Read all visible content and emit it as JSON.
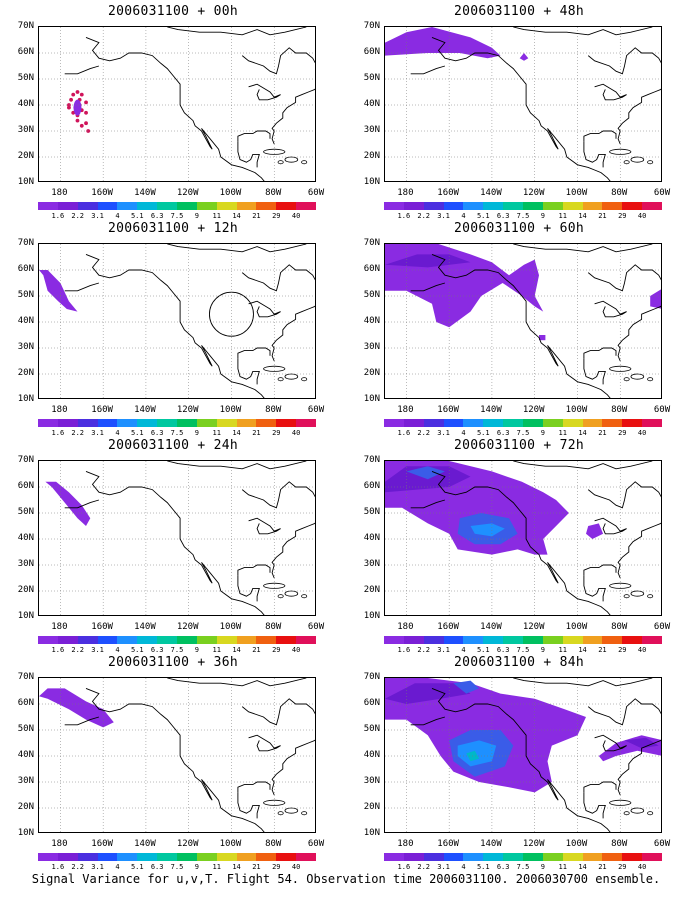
{
  "caption": "Signal Variance for u,v,T. Flight 54. Observation time 2006031100. 2006030700 ensemble.",
  "lat_ticks": [
    "70N",
    "60N",
    "50N",
    "40N",
    "30N",
    "20N",
    "10N"
  ],
  "lon_ticks": [
    "180",
    "160W",
    "140W",
    "120W",
    "100W",
    "80W",
    "60W"
  ],
  "colorbar": {
    "labels": [
      "1.6",
      "2.2",
      "3.1",
      "4",
      "5.1",
      "6.3",
      "7.5",
      "9",
      "11",
      "14",
      "21",
      "29",
      "40"
    ],
    "colors": [
      "#8a2be2",
      "#7a1fd6",
      "#4b2fe0",
      "#1e50ff",
      "#1e90ff",
      "#00b8d8",
      "#00c8a0",
      "#00c060",
      "#7ad020",
      "#d8d820",
      "#f0a020",
      "#f06010",
      "#e81010",
      "#e0105a"
    ]
  },
  "panels": [
    {
      "id": "p00",
      "title": "2006031100 + 00h",
      "variance_max": "1.6-2.2",
      "col": 0,
      "row": 0
    },
    {
      "id": "p48",
      "title": "2006031100 + 48h",
      "variance_max": "1.6-3.1",
      "col": 1,
      "row": 0
    },
    {
      "id": "p12",
      "title": "2006031100 + 12h",
      "variance_max": "1.6-2.2",
      "col": 0,
      "row": 1
    },
    {
      "id": "p60",
      "title": "2006031100 + 60h",
      "variance_max": "1.6-3.1",
      "col": 1,
      "row": 1
    },
    {
      "id": "p24",
      "title": "2006031100 + 24h",
      "variance_max": "1.6-2.2",
      "col": 0,
      "row": 2
    },
    {
      "id": "p72",
      "title": "2006031100 + 72h",
      "variance_max": "1.6-5.1",
      "col": 1,
      "row": 2
    },
    {
      "id": "p36",
      "title": "2006031100 + 36h",
      "variance_max": "1.6-2.2",
      "col": 0,
      "row": 3
    },
    {
      "id": "p84",
      "title": "2006031100 + 84h",
      "variance_max": "1.6-6.3",
      "col": 1,
      "row": 3
    }
  ]
}
